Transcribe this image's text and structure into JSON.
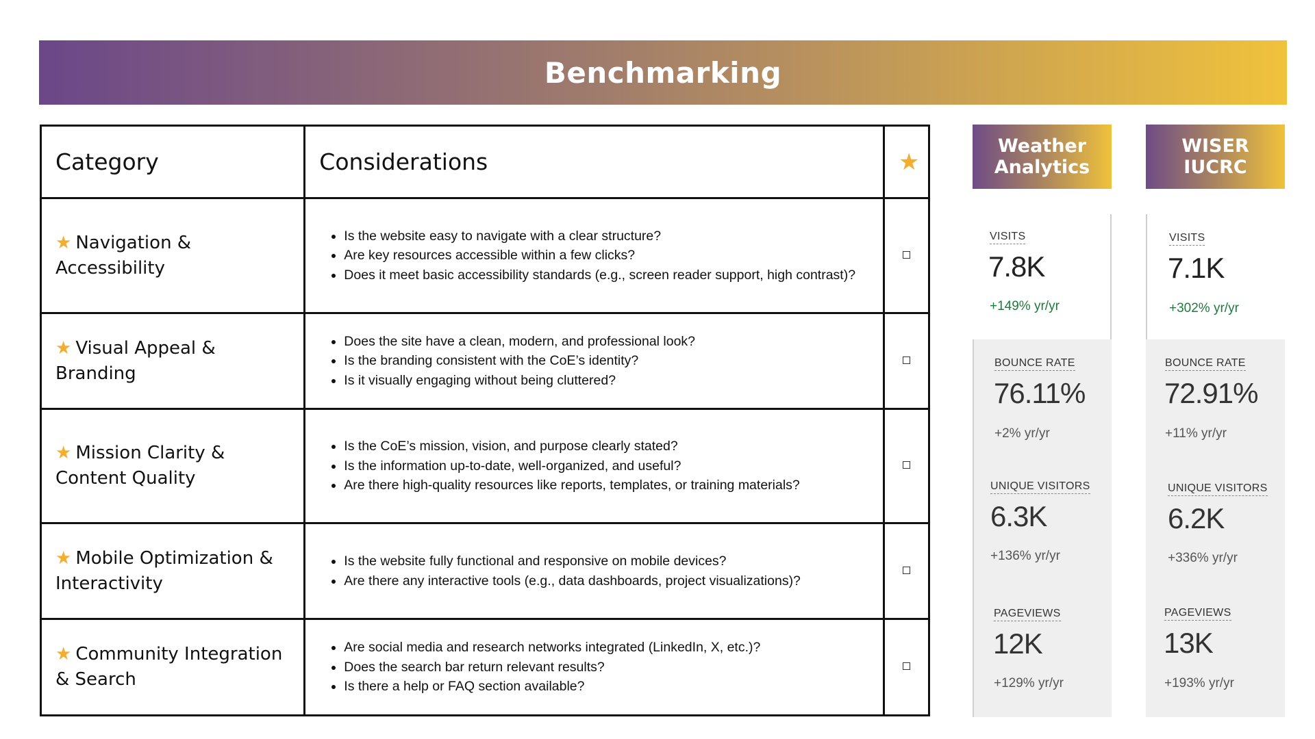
{
  "title": "Benchmarking",
  "table": {
    "headers": {
      "category": "Category",
      "considerations": "Considerations",
      "star": "★"
    },
    "rows": [
      {
        "category": "Navigation & Accessibility",
        "considerations": [
          "Is the website easy to navigate with a clear structure?",
          "Are key resources accessible within a few clicks?",
          "Does it meet basic accessibility standards (e.g., screen reader support, high contrast)?"
        ]
      },
      {
        "category": "Visual Appeal & Branding",
        "considerations": [
          "Does the site have a clean, modern, and professional look?",
          "Is the branding consistent with the CoE’s identity?",
          "Is it visually engaging without being cluttered?"
        ]
      },
      {
        "category": "Mission Clarity & Content Quality",
        "considerations": [
          "Is the CoE’s mission, vision, and purpose clearly stated?",
          "Is the information up-to-date, well-organized, and useful?",
          "Are there high-quality resources like reports, templates, or training materials?"
        ]
      },
      {
        "category": "Mobile Optimization & Interactivity",
        "considerations": [
          "Is the website fully functional and responsive on mobile devices?",
          "Are there any interactive tools (e.g., data dashboards, project visualizations)?"
        ]
      },
      {
        "category": "Community Integration & Search",
        "considerations": [
          "Are social media and research networks integrated (LinkedIn, X, etc.)?",
          "Does the search bar return relevant results?",
          "Is there a help or FAQ section available?"
        ]
      }
    ]
  },
  "stats": [
    {
      "name": "Weather\nAnalytics",
      "metrics": [
        {
          "label": "VISITS",
          "value": "7.8K",
          "change": "+149% yr/yr"
        },
        {
          "label": "BOUNCE RATE",
          "value": "76.11%",
          "change": "+2% yr/yr"
        },
        {
          "label": "UNIQUE VISITORS",
          "value": "6.3K",
          "change": "+136% yr/yr"
        },
        {
          "label": "PAGEVIEWS",
          "value": "12K",
          "change": "+129% yr/yr"
        }
      ]
    },
    {
      "name": "WISER\nIUCRC",
      "metrics": [
        {
          "label": "VISITS",
          "value": "7.1K",
          "change": "+302% yr/yr"
        },
        {
          "label": "BOUNCE RATE",
          "value": "72.91%",
          "change": "+11% yr/yr"
        },
        {
          "label": "UNIQUE VISITORS",
          "value": "6.2K",
          "change": "+336% yr/yr"
        },
        {
          "label": "PAGEVIEWS",
          "value": "13K",
          "change": "+193% yr/yr"
        }
      ]
    }
  ],
  "colors": {
    "banner_start": "#6b4789",
    "banner_end": "#f0c23c",
    "star": "#f3ad2f",
    "positive_change": "#1e7a3c",
    "panel_gray": "#efefef"
  },
  "icons": {
    "category_marker": "star-icon",
    "review_checkbox": "checkbox-icon"
  }
}
